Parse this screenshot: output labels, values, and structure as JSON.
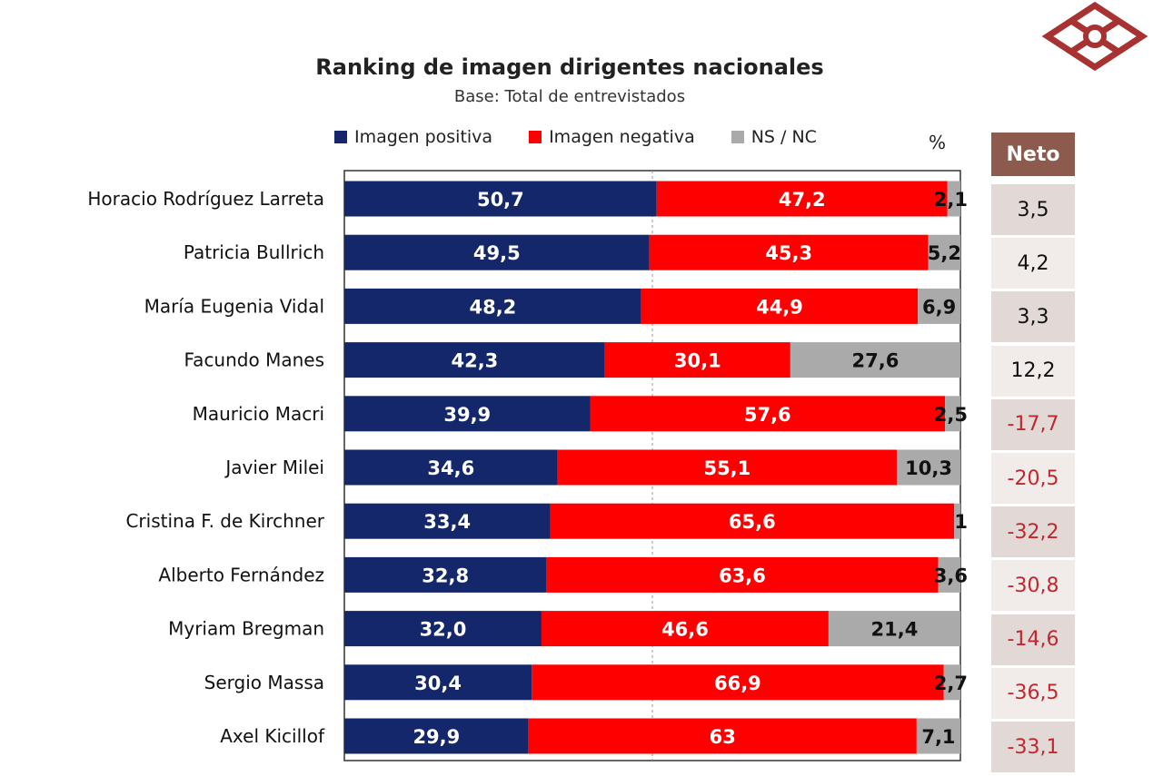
{
  "chart_data": {
    "type": "bar",
    "stacked": true,
    "orientation": "horizontal",
    "title": "Ranking de imagen dirigentes nacionales",
    "subtitle": "Base: Total de entrevistados",
    "unit": "%",
    "categories": [
      "Horacio Rodríguez Larreta",
      "Patricia Bullrich",
      "María Eugenia Vidal",
      "Facundo Manes",
      "Mauricio Macri",
      "Javier Milei",
      "Cristina F. de Kirchner",
      "Alberto Fernández",
      "Myriam Bregman",
      "Sergio Massa",
      "Axel Kicillof"
    ],
    "series": [
      {
        "name": "Imagen positiva",
        "color": "#14276a",
        "values": [
          50.7,
          49.5,
          48.2,
          42.3,
          39.9,
          34.6,
          33.4,
          32.8,
          32.0,
          30.4,
          29.9
        ],
        "labels": [
          "50,7",
          "49,5",
          "48,2",
          "42,3",
          "39,9",
          "34,6",
          "33,4",
          "32,8",
          "32,0",
          "30,4",
          "29,9"
        ]
      },
      {
        "name": "Imagen negativa",
        "color": "#ff0000",
        "values": [
          47.2,
          45.3,
          44.9,
          30.1,
          57.6,
          55.1,
          65.6,
          63.6,
          46.6,
          66.9,
          63
        ],
        "labels": [
          "47,2",
          "45,3",
          "44,9",
          "30,1",
          "57,6",
          "55,1",
          "65,6",
          "63,6",
          "46,6",
          "66,9",
          "63"
        ]
      },
      {
        "name": "NS / NC",
        "color": "#aaaaaa",
        "values": [
          2.1,
          5.2,
          6.9,
          27.6,
          2.5,
          10.3,
          1,
          3.6,
          21.4,
          2.7,
          7.1
        ],
        "labels": [
          "2,1",
          "5,2",
          "6,9",
          "27,6",
          "2,5",
          "10,3",
          "1",
          "3,6",
          "21,4",
          "2,7",
          "7,1"
        ]
      }
    ],
    "xlim": [
      0,
      100
    ],
    "neto": {
      "header": "Neto",
      "values": [
        "3,5",
        "4,2",
        "3,3",
        "12,2",
        "-17,7",
        "-20,5",
        "-32,2",
        "-30,8",
        "-14,6",
        "-36,5",
        "-33,1"
      ]
    }
  },
  "colors": {
    "neto_header": "#8c5b4e",
    "neto_shade": "#e2d8d5",
    "neto_light": "#f1ecea",
    "negative_text": "#c0282d",
    "logo": "#a83232"
  },
  "pct_label": "%",
  "logo_icon": "diamond-lattice-logo"
}
